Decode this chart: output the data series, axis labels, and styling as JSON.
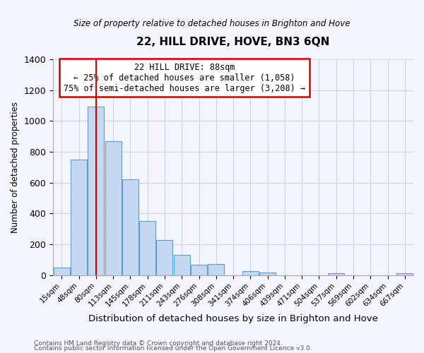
{
  "title": "22, HILL DRIVE, HOVE, BN3 6QN",
  "subtitle": "Size of property relative to detached houses in Brighton and Hove",
  "xlabel": "Distribution of detached houses by size in Brighton and Hove",
  "ylabel": "Number of detached properties",
  "bar_labels": [
    "15sqm",
    "48sqm",
    "80sqm",
    "113sqm",
    "145sqm",
    "178sqm",
    "211sqm",
    "243sqm",
    "276sqm",
    "308sqm",
    "341sqm",
    "374sqm",
    "406sqm",
    "439sqm",
    "471sqm",
    "504sqm",
    "537sqm",
    "569sqm",
    "602sqm",
    "634sqm",
    "667sqm"
  ],
  "bar_values": [
    50,
    750,
    1095,
    870,
    620,
    350,
    225,
    130,
    65,
    70,
    0,
    25,
    15,
    0,
    0,
    0,
    10,
    0,
    0,
    0,
    10
  ],
  "bar_color": "#c5d8f0",
  "bar_edgecolor": "#5a9fd4",
  "vline_x": 2,
  "vline_color": "#cc0000",
  "ylim": [
    0,
    1400
  ],
  "yticks": [
    0,
    200,
    400,
    600,
    800,
    1000,
    1200,
    1400
  ],
  "annotation_title": "22 HILL DRIVE: 88sqm",
  "annotation_line1": "← 25% of detached houses are smaller (1,058)",
  "annotation_line2": "75% of semi-detached houses are larger (3,208) →",
  "footer1": "Contains HM Land Registry data © Crown copyright and database right 2024.",
  "footer2": "Contains public sector information licensed under the Open Government Licence v3.0.",
  "bg_color": "#f5f5ff",
  "grid_color": "#c8d8e8"
}
